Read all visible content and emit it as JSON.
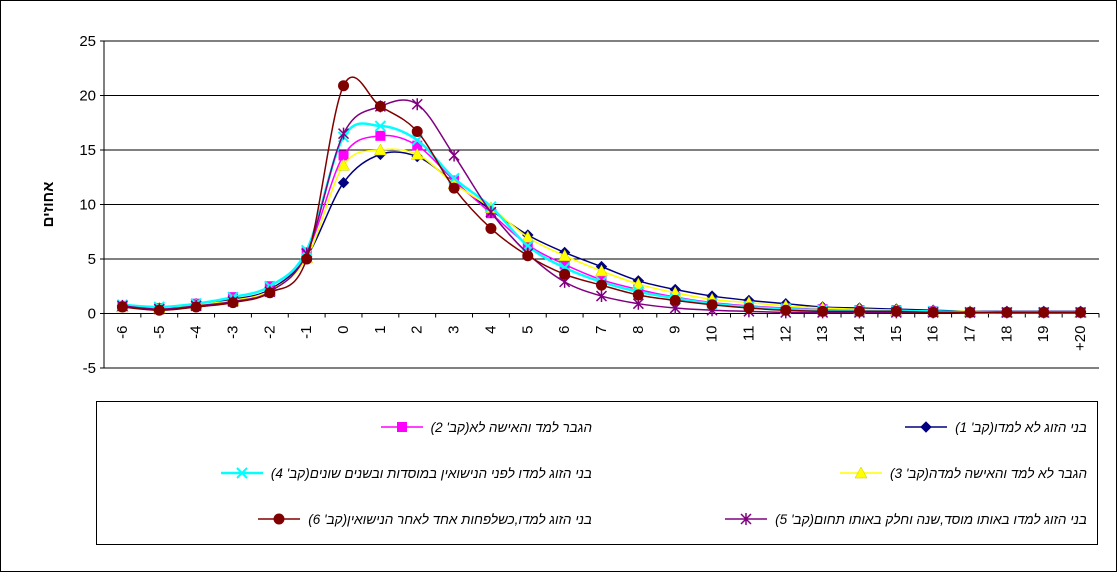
{
  "chart_data": {
    "type": "line",
    "ylabel": "אחוזים",
    "xlabel": "",
    "ylim": [
      -5,
      25
    ],
    "yticks": [
      -5,
      0,
      5,
      10,
      15,
      20,
      25
    ],
    "grid": true,
    "legend_position": "bottom",
    "categories": [
      "-6",
      "-5",
      "-4",
      "-3",
      "-2",
      "-1",
      "0",
      "1",
      "2",
      "3",
      "4",
      "5",
      "6",
      "7",
      "8",
      "9",
      "10",
      "11",
      "12",
      "13",
      "14",
      "15",
      "16",
      "17",
      "18",
      "19",
      "+20"
    ],
    "series": [
      {
        "name": "בני הזוג לא למדו(קב' 1)",
        "color": "#000080",
        "marker": "diamond",
        "values": [
          0.7,
          0.5,
          0.9,
          1.3,
          2.2,
          5.2,
          12.0,
          14.6,
          14.4,
          12.0,
          9.5,
          7.2,
          5.6,
          4.3,
          3.0,
          2.2,
          1.6,
          1.2,
          0.9,
          0.6,
          0.5,
          0.4,
          0.3,
          0.2,
          0.2,
          0.2,
          0.2
        ]
      },
      {
        "name": "הגבר למד והאישה לא(קב' 2)",
        "color": "#FF00FF",
        "marker": "square",
        "values": [
          0.7,
          0.5,
          0.9,
          1.5,
          2.5,
          5.6,
          14.5,
          16.3,
          15.4,
          12.2,
          9.2,
          6.3,
          4.5,
          3.1,
          2.2,
          1.5,
          1.0,
          0.7,
          0.5,
          0.4,
          0.3,
          0.3,
          0.2,
          0.1,
          0.1,
          0.1,
          0.1
        ]
      },
      {
        "name": "הגבר לא למד והאישה למדה(קב' 3)",
        "color": "#FFFF00",
        "marker": "triangle",
        "values": [
          0.6,
          0.5,
          0.8,
          1.2,
          2.1,
          5.1,
          13.6,
          15.0,
          14.6,
          11.9,
          9.7,
          7.0,
          5.3,
          3.9,
          2.7,
          1.9,
          1.3,
          1.0,
          0.7,
          0.5,
          0.4,
          0.3,
          0.2,
          0.2,
          0.1,
          0.1,
          0.1
        ]
      },
      {
        "name": "בני הזוג למדו לפני הנישואין במוסדות ובשנים שונים(קב' 4)",
        "color": "#00FFFF",
        "marker": "x",
        "values": [
          0.8,
          0.6,
          0.9,
          1.5,
          2.5,
          5.8,
          16.2,
          17.2,
          15.9,
          12.4,
          9.8,
          6.2,
          4.2,
          2.9,
          2.0,
          1.4,
          0.9,
          0.6,
          0.4,
          0.3,
          0.2,
          0.2,
          0.2,
          0.1,
          0.1,
          0.1,
          0.1
        ]
      },
      {
        "name": "בני הזוג למדו באותו מוסד,שנה וחלק באותו תחום(קב' 5)",
        "color": "#800080",
        "marker": "star",
        "values": [
          0.7,
          0.4,
          0.7,
          1.1,
          2.0,
          5.5,
          16.5,
          19.0,
          19.2,
          14.5,
          9.3,
          5.5,
          2.9,
          1.6,
          0.9,
          0.5,
          0.3,
          0.2,
          0.1,
          0.1,
          0.1,
          0.1,
          0.1,
          0.1,
          0.1,
          0.1,
          0.1
        ]
      },
      {
        "name": "בני הזוג למדו,כשלפחות אחד לאחר הנישואין(קב' 6)",
        "color": "#800000",
        "marker": "circle",
        "values": [
          0.6,
          0.3,
          0.6,
          1.0,
          1.9,
          5.0,
          20.9,
          19.0,
          16.7,
          11.5,
          7.8,
          5.3,
          3.6,
          2.6,
          1.7,
          1.2,
          0.8,
          0.5,
          0.3,
          0.2,
          0.2,
          0.2,
          0.1,
          0.1,
          0.1,
          0.1,
          0.1
        ]
      }
    ]
  }
}
